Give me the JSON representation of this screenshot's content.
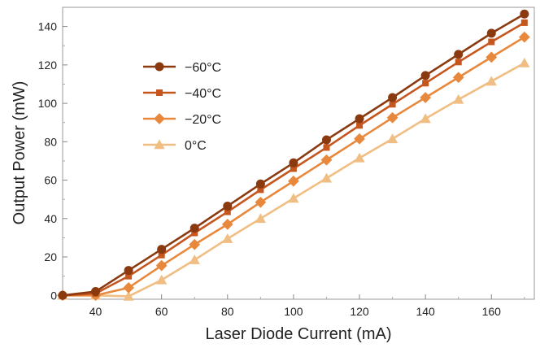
{
  "chart_data": {
    "type": "line",
    "xlabel": "Laser Diode Current (mA)",
    "ylabel": "Output Power (mW)",
    "xlim": [
      30,
      173
    ],
    "ylim": [
      -2,
      150
    ],
    "x_ticks": [
      40,
      60,
      80,
      100,
      120,
      140,
      160
    ],
    "y_ticks": [
      0,
      20,
      40,
      60,
      80,
      100,
      120,
      140
    ],
    "grid": false,
    "legend_position": "upper-left",
    "x": [
      30,
      40,
      50,
      60,
      70,
      80,
      90,
      100,
      110,
      120,
      130,
      140,
      150,
      160,
      170
    ],
    "series": [
      {
        "name": "−60°C",
        "marker": "circle",
        "color": "#8B3A0F",
        "values": [
          0,
          2,
          13,
          24,
          35,
          46.5,
          58,
          69,
          81,
          92,
          103,
          114.5,
          125.5,
          136.5,
          146.5
        ]
      },
      {
        "name": "−40°C",
        "marker": "square",
        "color": "#C4561E",
        "values": [
          0,
          1,
          10,
          21,
          32.5,
          43.5,
          55,
          66,
          77,
          88.5,
          99.5,
          110.5,
          121.5,
          132,
          142
        ]
      },
      {
        "name": "−20°C",
        "marker": "diamond",
        "color": "#E8883C",
        "values": [
          0,
          0,
          4,
          15.5,
          26.5,
          37,
          48.5,
          59.5,
          70.5,
          81.5,
          92.5,
          103,
          113.5,
          124,
          134.5
        ]
      },
      {
        "name": "0°C",
        "marker": "triangle",
        "color": "#F0BE82",
        "values": [
          0,
          0,
          -0.5,
          8,
          18.5,
          29.5,
          40,
          50.5,
          61,
          71.5,
          81.5,
          92,
          102,
          111.5,
          121
        ]
      }
    ]
  }
}
